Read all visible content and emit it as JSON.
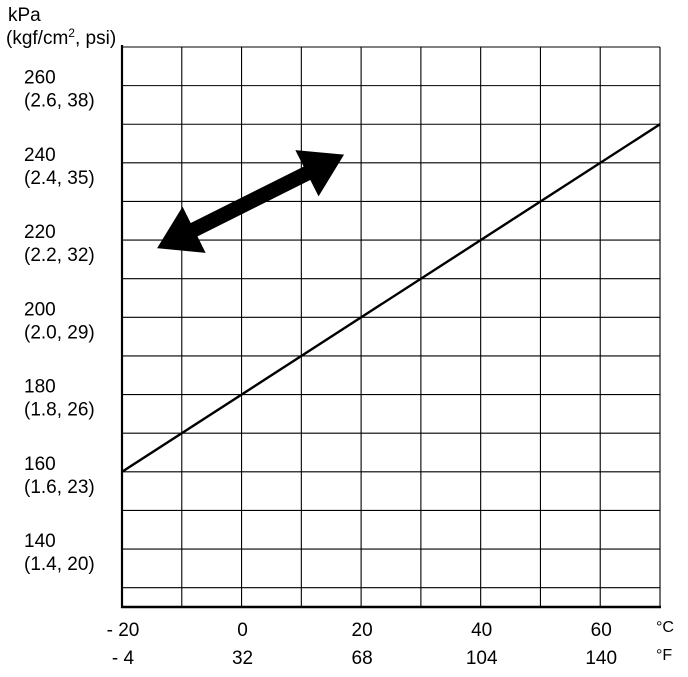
{
  "chart_data": {
    "type": "line",
    "y_unit_label": {
      "line1": "kPa",
      "line2_prefix": "(kgf/cm",
      "line2_sup": "2",
      "line2_suffix": ", psi)"
    },
    "y_ticks": [
      {
        "kpa": 260,
        "label": "260",
        "sub": "(2.6, 38)"
      },
      {
        "kpa": 240,
        "label": "240",
        "sub": "(2.4, 35)"
      },
      {
        "kpa": 220,
        "label": "220",
        "sub": "(2.2, 32)"
      },
      {
        "kpa": 200,
        "label": "200",
        "sub": "(2.0, 29)"
      },
      {
        "kpa": 180,
        "label": "180",
        "sub": "(1.8, 26)"
      },
      {
        "kpa": 160,
        "label": "160",
        "sub": "(1.6, 23)"
      },
      {
        "kpa": 140,
        "label": "140",
        "sub": "(1.4, 20)"
      }
    ],
    "x_ticks_c": [
      {
        "c": -20,
        "label": "- 20"
      },
      {
        "c": 0,
        "label": "0"
      },
      {
        "c": 20,
        "label": "20"
      },
      {
        "c": 40,
        "label": "40"
      },
      {
        "c": 60,
        "label": "60"
      }
    ],
    "x_ticks_f": [
      {
        "c": -20,
        "label": "- 4"
      },
      {
        "c": 0,
        "label": "32"
      },
      {
        "c": 20,
        "label": "68"
      },
      {
        "c": 40,
        "label": "104"
      },
      {
        "c": 60,
        "label": "140"
      }
    ],
    "x_unit_c": "°C",
    "x_unit_f": "°F",
    "xlim": [
      -20,
      70
    ],
    "ylim": [
      125,
      270
    ],
    "grid": true,
    "x_grid_step": 10,
    "y_grid_step": 10,
    "series": [
      {
        "x": [
          -20,
          70
        ],
        "y": [
          160,
          250
        ]
      }
    ],
    "annotations": [
      {
        "kind": "double-arrow",
        "from": [
          -14,
          218
        ],
        "to": [
          17,
          242
        ]
      }
    ]
  }
}
